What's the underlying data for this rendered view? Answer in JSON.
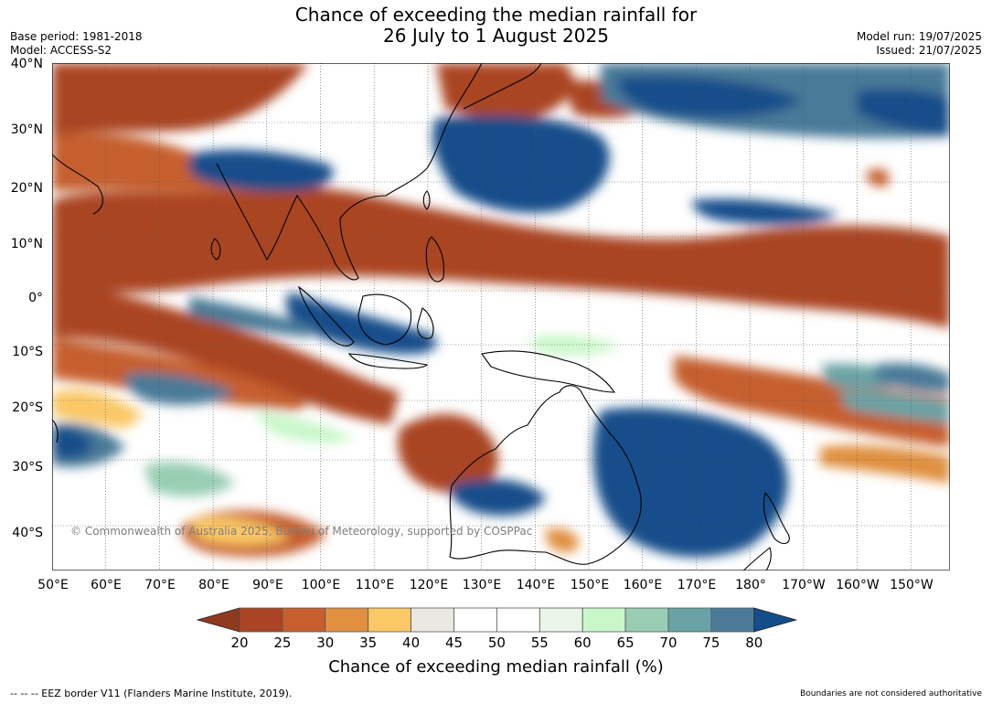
{
  "header": {
    "title_line1": "Chance of exceeding the median rainfall for",
    "title_line2": "26 July to 1 August 2025",
    "base_period": "Base period: 1981-2018",
    "model": "Model: ACCESS-S2",
    "model_run": "Model run: 19/07/2025",
    "issued": "Issued: 21/07/2025"
  },
  "map": {
    "copyright": "© Commonwealth of Australia 2025, Bureau of Meteorology, supported by COSPPac",
    "lat_labels": [
      "40°N",
      "30°N",
      "20°N",
      "10°N",
      "0°",
      "10°S",
      "20°S",
      "30°S",
      "40°S"
    ],
    "lon_labels": [
      "50°E",
      "60°E",
      "70°E",
      "80°E",
      "90°E",
      "100°E",
      "110°E",
      "120°E",
      "130°E",
      "140°E",
      "150°E",
      "160°E",
      "170°E",
      "180°",
      "170°W",
      "160°W",
      "150°W"
    ],
    "colors": {
      "c15": "#8e3a1f",
      "c20": "#aa4424",
      "c25": "#c65f2d",
      "c30": "#e0903f",
      "c35": "#fbc866",
      "c40": "#ebe8e4",
      "c45": "#ffffff",
      "c50": "#ffffff",
      "c55": "#e8f5e8",
      "c60": "#c9f7c9",
      "c65": "#98cdb4",
      "c70": "#6aa3a5",
      "c75": "#4a7a98",
      "c80": "#134e8a"
    }
  },
  "colorbar": {
    "ticks": [
      "20",
      "25",
      "30",
      "35",
      "40",
      "45",
      "50",
      "55",
      "60",
      "65",
      "70",
      "75",
      "80"
    ],
    "colors": [
      "#aa4424",
      "#c65f2d",
      "#e0903f",
      "#fbc866",
      "#ebe8e4",
      "#ffffff",
      "#ffffff",
      "#e8f5e8",
      "#c9f7c9",
      "#98cdb4",
      "#6aa3a5",
      "#4a7a98"
    ],
    "low_color": "#8e3a1f",
    "high_color": "#134e8a",
    "label": "Chance of exceeding median rainfall (%)"
  },
  "footer": {
    "eez_note": "--  --  -- EEZ border V11 (Flanders Marine Institute, 2019).",
    "boundaries_note": "Boundaries are not considered authoritative"
  }
}
